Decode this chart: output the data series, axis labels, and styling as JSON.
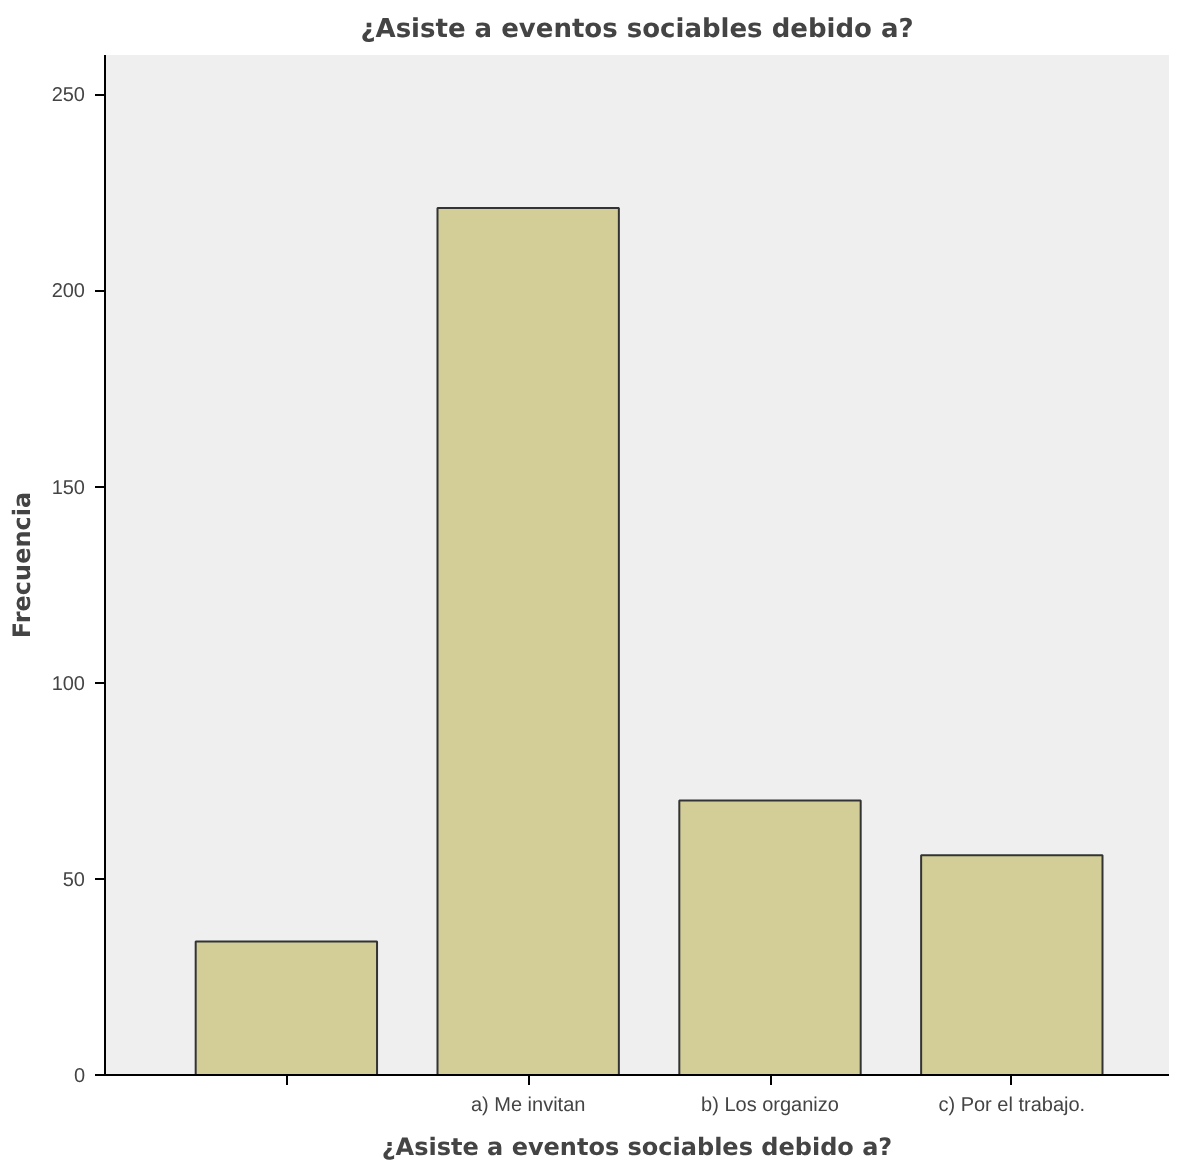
{
  "chart_data": {
    "type": "bar",
    "title": "¿Asiste a eventos sociables debido a?",
    "xlabel": "¿Asiste a eventos sociables debido a?",
    "ylabel": "Frecuencia",
    "categories": [
      null,
      "a) Me invitan",
      "b) Los organizo",
      "c) Por el trabajo."
    ],
    "values": [
      34,
      221,
      70,
      56
    ],
    "color": "#d3ce97",
    "ylim": [
      0,
      260
    ],
    "yticks": [
      0,
      50,
      100,
      150,
      200,
      250
    ],
    "grid": false
  }
}
